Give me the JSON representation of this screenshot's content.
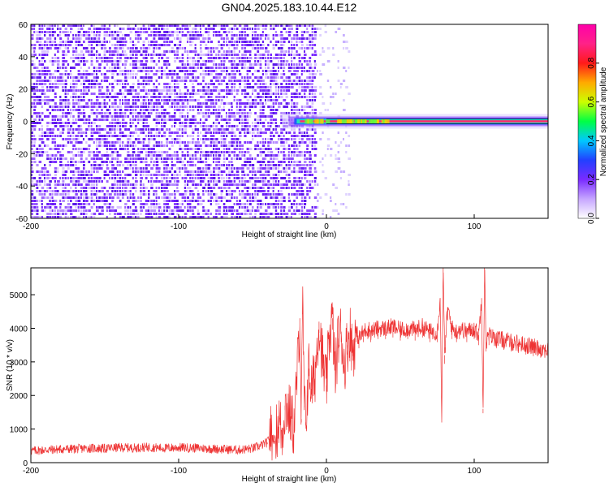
{
  "title": "GN04.2025.183.10.44.E12",
  "colors": {
    "background": "#ffffff",
    "frame": "#000000",
    "snr_line": "#ee3333",
    "noise_purple": "#7a2bff",
    "band_core": "#ff2a6e"
  },
  "chart_data": [
    {
      "type": "heatmap",
      "title": "GN04.2025.183.10.44.E12",
      "xlabel": "Height of straight line (km)",
      "ylabel": "Frequency (Hz)",
      "xlim": [
        -200,
        150
      ],
      "ylim": [
        -60,
        60
      ],
      "x_ticks": [
        -200,
        -100,
        0,
        100
      ],
      "y_ticks": [
        -60,
        -40,
        -20,
        0,
        20,
        40,
        60
      ],
      "noise_region_x": [
        -200,
        15
      ],
      "strong_noise_x": [
        -200,
        -8
      ],
      "signal_band": {
        "frequency": 0,
        "x_start": -30,
        "x_end": 150
      },
      "colorbar": {
        "label": "Normalized spectral amplitude",
        "range": [
          0.0,
          1.0
        ],
        "ticks": [
          0.0,
          0.2,
          0.4,
          0.6,
          0.8
        ],
        "colors": [
          "#ffffff",
          "#c6a6ff",
          "#7a2bff",
          "#2240ff",
          "#00c8ff",
          "#00ff44",
          "#ccff00",
          "#ffaa00",
          "#ff1a1a",
          "#ff2288",
          "#ff00aa"
        ]
      },
      "grid": false
    },
    {
      "type": "line",
      "xlabel": "Height of straight line (km)",
      "ylabel": "SNR (10 * v/v)",
      "xlim": [
        -200,
        150
      ],
      "ylim": [
        0,
        5800
      ],
      "x_ticks": [
        -200,
        -100,
        0,
        100
      ],
      "y_ticks": [
        0,
        1000,
        2000,
        3000,
        4000,
        5000
      ],
      "series": [
        {
          "x": [
            -200,
            -190,
            -180,
            -170,
            -160,
            -150,
            -140,
            -130,
            -120,
            -110,
            -100,
            -90,
            -80,
            -70,
            -60,
            -50,
            -45,
            -40,
            -38,
            -35,
            -32,
            -30,
            -28,
            -25,
            -22,
            -20,
            -18,
            -17,
            -16,
            -15,
            -14,
            -12,
            -10,
            -8,
            -5,
            -2,
            0,
            2,
            4,
            6,
            8,
            10,
            12,
            14,
            16,
            18,
            20,
            22,
            25,
            28,
            30,
            35,
            40,
            45,
            50,
            55,
            60,
            65,
            70,
            75,
            77,
            78,
            79,
            80,
            82,
            85,
            88,
            90,
            95,
            100,
            103,
            105,
            106,
            107,
            108,
            110,
            115,
            120,
            125,
            130,
            135,
            140,
            145,
            150
          ],
          "y": [
            350,
            380,
            400,
            410,
            430,
            420,
            450,
            440,
            460,
            430,
            450,
            440,
            420,
            400,
            380,
            420,
            500,
            600,
            900,
            650,
            1300,
            800,
            1700,
            1500,
            1000,
            2500,
            4300,
            1300,
            4800,
            1700,
            1200,
            2800,
            2200,
            2500,
            4200,
            2800,
            2300,
            3800,
            4300,
            2600,
            3700,
            3900,
            2900,
            3500,
            3900,
            3300,
            3900,
            3700,
            3900,
            4000,
            3900,
            4000,
            4000,
            4050,
            3950,
            4000,
            3950,
            4050,
            3900,
            3900,
            4900,
            1300,
            5800,
            3200,
            4600,
            4000,
            3900,
            4000,
            3900,
            4000,
            3800,
            4900,
            1600,
            5800,
            3600,
            3800,
            3700,
            3650,
            3600,
            3550,
            3500,
            3450,
            3400,
            3350
          ],
          "color": "#ee3333"
        }
      ],
      "grid": false
    }
  ]
}
